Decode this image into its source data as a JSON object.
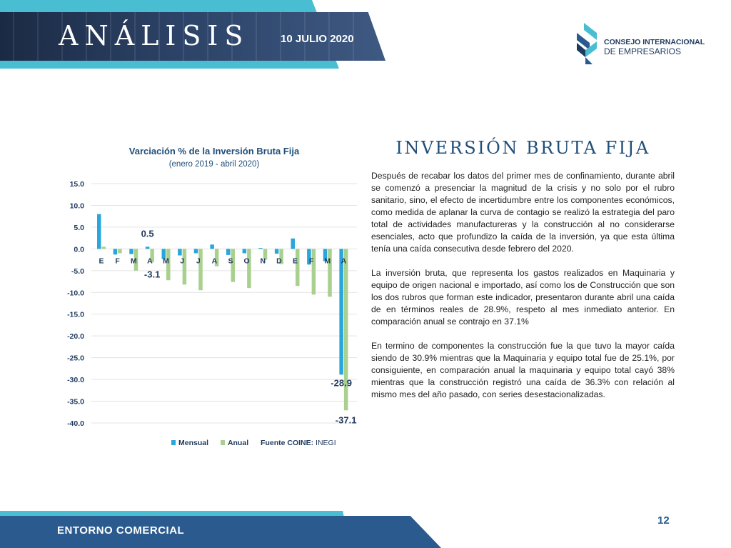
{
  "header": {
    "title": "ANÁLISIS",
    "date": "10 JULIO 2020"
  },
  "logo": {
    "line1": "CONSEJO INTERNACIONAL",
    "line2": "DE EMPRESARIOS"
  },
  "colors": {
    "mensual": "#2aa6dc",
    "anual": "#a9d08e",
    "title_blue": "#1f4e79",
    "banner_cyan": "#49bed3",
    "footer_blue": "#2a5a8e"
  },
  "chart_data": {
    "type": "bar",
    "title": "Varciación % de la Inversión Bruta Fija",
    "subtitle": "(enero 2019 - abril  2020)",
    "categories": [
      "E",
      "F",
      "M",
      "A",
      "M",
      "J",
      "J",
      "A",
      "S",
      "O",
      "N",
      "D",
      "E",
      "F",
      "M",
      "A"
    ],
    "series": [
      {
        "name": "Mensual",
        "values": [
          8.0,
          -1.3,
          -1.2,
          0.5,
          -2.3,
          -1.5,
          -1.0,
          1.0,
          -1.4,
          -1.0,
          0.2,
          -1.1,
          2.4,
          -3.6,
          -2.8,
          -28.9
        ]
      },
      {
        "name": "Anual",
        "values": [
          0.5,
          -1.0,
          -5.0,
          -3.1,
          -7.2,
          -8.2,
          -9.5,
          -4.0,
          -7.6,
          -9.0,
          -2.5,
          -3.5,
          -8.5,
          -10.5,
          -11.0,
          -37.1
        ]
      }
    ],
    "yticks": [
      "15.0",
      "10.0",
      "5.0",
      "0.0",
      "-5.0",
      "-10.0",
      "-15.0",
      "-20.0",
      "-25.0",
      "-30.0",
      "-35.0",
      "-40.0"
    ],
    "ylim": [
      -40,
      15
    ],
    "annotations": [
      {
        "series": 0,
        "index": 3,
        "label": "0.5"
      },
      {
        "series": 1,
        "index": 3,
        "label": "-3.1"
      },
      {
        "series": 0,
        "index": 15,
        "label": "-28.9"
      },
      {
        "series": 1,
        "index": 15,
        "label": "-37.1"
      }
    ],
    "grid": true,
    "legend": "bottom",
    "source_label": "Fuente COINE:",
    "source_value": "INEGI"
  },
  "section": {
    "title": "INVERSIÓN BRUTA FIJA",
    "paragraphs": [
      "Después de recabar los datos del primer mes de confinamiento, durante abril se comenzó a presenciar la magnitud de la crisis y no solo por el rubro sanitario, sino, el efecto de incertidumbre entre los componentes económicos, como medida de aplanar la curva de contagio se realizó la estrategia del paro total de actividades manufactureras y la construcción al no considerarse esenciales, acto que profundizo la caída de la inversión, ya que esta última tenía una caída consecutiva desde febrero del 2020.",
      "La inversión bruta, que representa los gastos realizados en Maquinaria y equipo de origen nacional e importado, así como los de Construcción que son los dos rubros que forman este indicador, presentaron durante abril una caída de en términos reales de 28.9%, respeto al mes inmediato anterior. En comparación anual se contrajo en 37.1%",
      "En termino de componentes la construcción fue la que tuvo la mayor caída siendo de 30.9% mientras que la Maquinaria y equipo total fue de 25.1%, por consiguiente, en comparación anual la maquinaria y equipo total cayó 38% mientras que la construcción registró una caída de 36.3% con relación al mismo mes del año pasado, con series desestacionalizadas."
    ]
  },
  "footer": {
    "label": "ENTORNO COMERCIAL",
    "page": "12"
  }
}
